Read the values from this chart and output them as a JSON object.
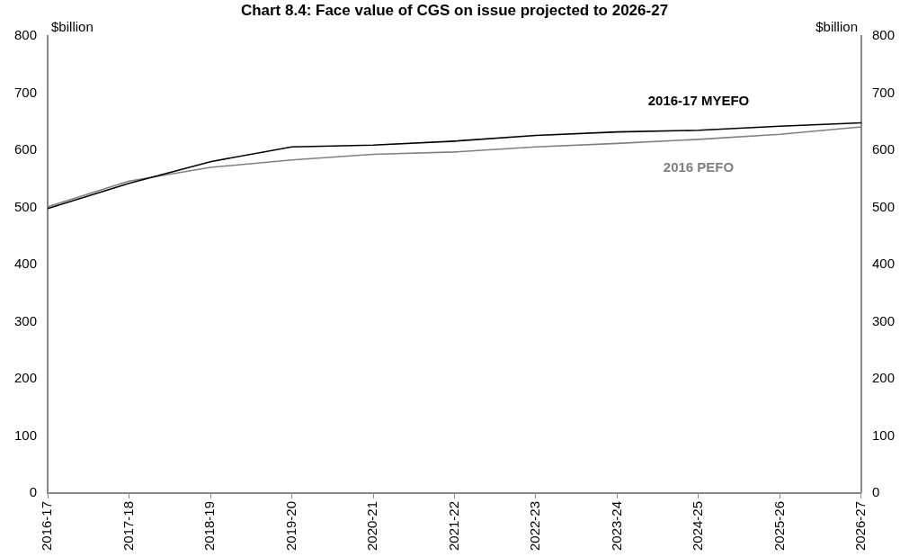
{
  "chart_data": {
    "type": "line",
    "title": "Chart 8.4: Face value of CGS on issue projected to 2026-27",
    "ylabel": "$billion",
    "y2label": "$billion",
    "categories": [
      "2016-17",
      "2017-18",
      "2018-19",
      "2019-20",
      "2020-21",
      "2021-22",
      "2022-23",
      "2023-24",
      "2024-25",
      "2025-26",
      "2026-27"
    ],
    "series": [
      {
        "name": "2016-17 MYEFO",
        "color": "#000000",
        "values": [
          498,
          542,
          580,
          606,
          609,
          616,
          626,
          632,
          635,
          642,
          648
        ]
      },
      {
        "name": "2016 PEFO",
        "color": "#808080",
        "values": [
          501,
          546,
          570,
          583,
          593,
          597,
          606,
          612,
          619,
          628,
          641
        ]
      }
    ],
    "ylim": [
      0,
      800
    ],
    "yticks": [
      0,
      100,
      200,
      300,
      400,
      500,
      600,
      700,
      800
    ],
    "y2lim": [
      0,
      800
    ],
    "y2ticks": [
      0,
      100,
      200,
      300,
      400,
      500,
      600,
      700,
      800
    ],
    "grid": false,
    "legend": false,
    "marker": "none",
    "line_style": "solid"
  }
}
